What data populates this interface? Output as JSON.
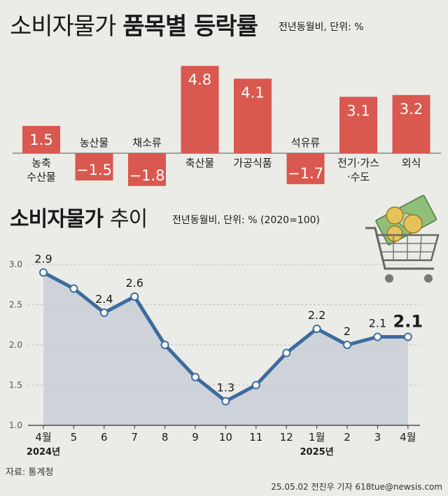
{
  "header": {
    "title_plain": "소비자물가",
    "title_bold": "품목별 등락률",
    "unit": "전년동월비, 단위: %"
  },
  "trend_header": {
    "title_bold": "소비자물가",
    "title_plain": "추이",
    "unit": "전년동월비, 단위: % (2020=100)"
  },
  "source": "자료: 통계청",
  "credit": "25.05.02  전진우 기자  618tue@newsis.com",
  "colors": {
    "bar": "#d9584f",
    "line": "#3d6b9e",
    "area": "#c9ced6",
    "background": "#ebebe7"
  },
  "chart_data": [
    {
      "type": "bar",
      "categories": [
        "농축\n수산물",
        "농산물",
        "채소류",
        "축산물",
        "가공식품",
        "석유류",
        "전기·가스\n·수도",
        "외식"
      ],
      "values": [
        1.5,
        -1.5,
        -1.8,
        4.8,
        4.1,
        -1.7,
        3.1,
        3.2
      ],
      "value_labels": [
        "1.5",
        "−1.5",
        "−1.8",
        "4.8",
        "4.1",
        "−1.7",
        "3.1",
        "3.2"
      ],
      "title": "소비자물가 품목별 등락률",
      "ylabel": "전년동월비, 단위: %"
    },
    {
      "type": "line",
      "title": "소비자물가 추이",
      "x": [
        "4월",
        "5",
        "6",
        "7",
        "8",
        "9",
        "10",
        "11",
        "12",
        "1월",
        "2",
        "3",
        "4월"
      ],
      "x_year_labels": [
        {
          "index": 0,
          "text": "2024년"
        },
        {
          "index": 9,
          "text": "2025년"
        }
      ],
      "y": [
        2.9,
        2.7,
        2.4,
        2.6,
        2.0,
        1.6,
        1.3,
        1.5,
        1.9,
        2.2,
        2.0,
        2.1,
        2.1
      ],
      "point_labels": [
        {
          "index": 0,
          "text": "2.9"
        },
        {
          "index": 2,
          "text": "2.4"
        },
        {
          "index": 3,
          "text": "2.6"
        },
        {
          "index": 6,
          "text": "1.3"
        },
        {
          "index": 9,
          "text": "2.2"
        },
        {
          "index": 10,
          "text": "2"
        },
        {
          "index": 11,
          "text": "2.1"
        },
        {
          "index": 12,
          "text": "2.1"
        }
      ],
      "ylim": [
        1.0,
        3.0
      ],
      "yticks": [
        "3.0",
        "2.5",
        "2.0",
        "1.5",
        "1.0"
      ],
      "grid": true,
      "ylabel": "전년동월비, 단위: % (2020=100)"
    }
  ]
}
